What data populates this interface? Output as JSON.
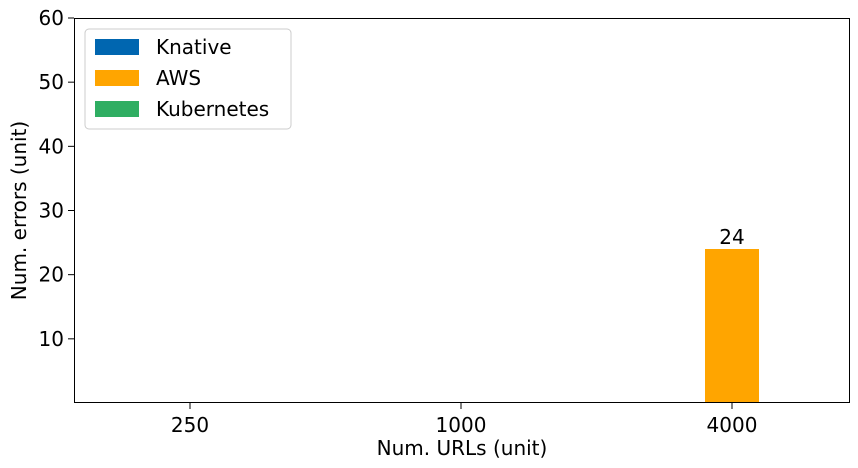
{
  "chart_data": {
    "type": "bar",
    "title": "",
    "xlabel": "Num. URLs (unit)",
    "ylabel": "Num. errors (unit)",
    "categories": [
      "250",
      "1000",
      "4000"
    ],
    "yticks": [
      "10",
      "20",
      "30",
      "40",
      "50",
      "60"
    ],
    "ylim": [
      0,
      60
    ],
    "grid": false,
    "legend_position": "top-left",
    "series": [
      {
        "name": "Knative",
        "color": "#0066b0",
        "values": [
          0,
          0,
          0
        ]
      },
      {
        "name": "AWS",
        "color": "#ffa500",
        "values": [
          0,
          0,
          24
        ]
      },
      {
        "name": "Kubernetes",
        "color": "#2fae62",
        "values": [
          0,
          0,
          0
        ]
      }
    ],
    "data_labels": [
      {
        "series": "AWS",
        "category": "4000",
        "text": "24"
      }
    ]
  }
}
